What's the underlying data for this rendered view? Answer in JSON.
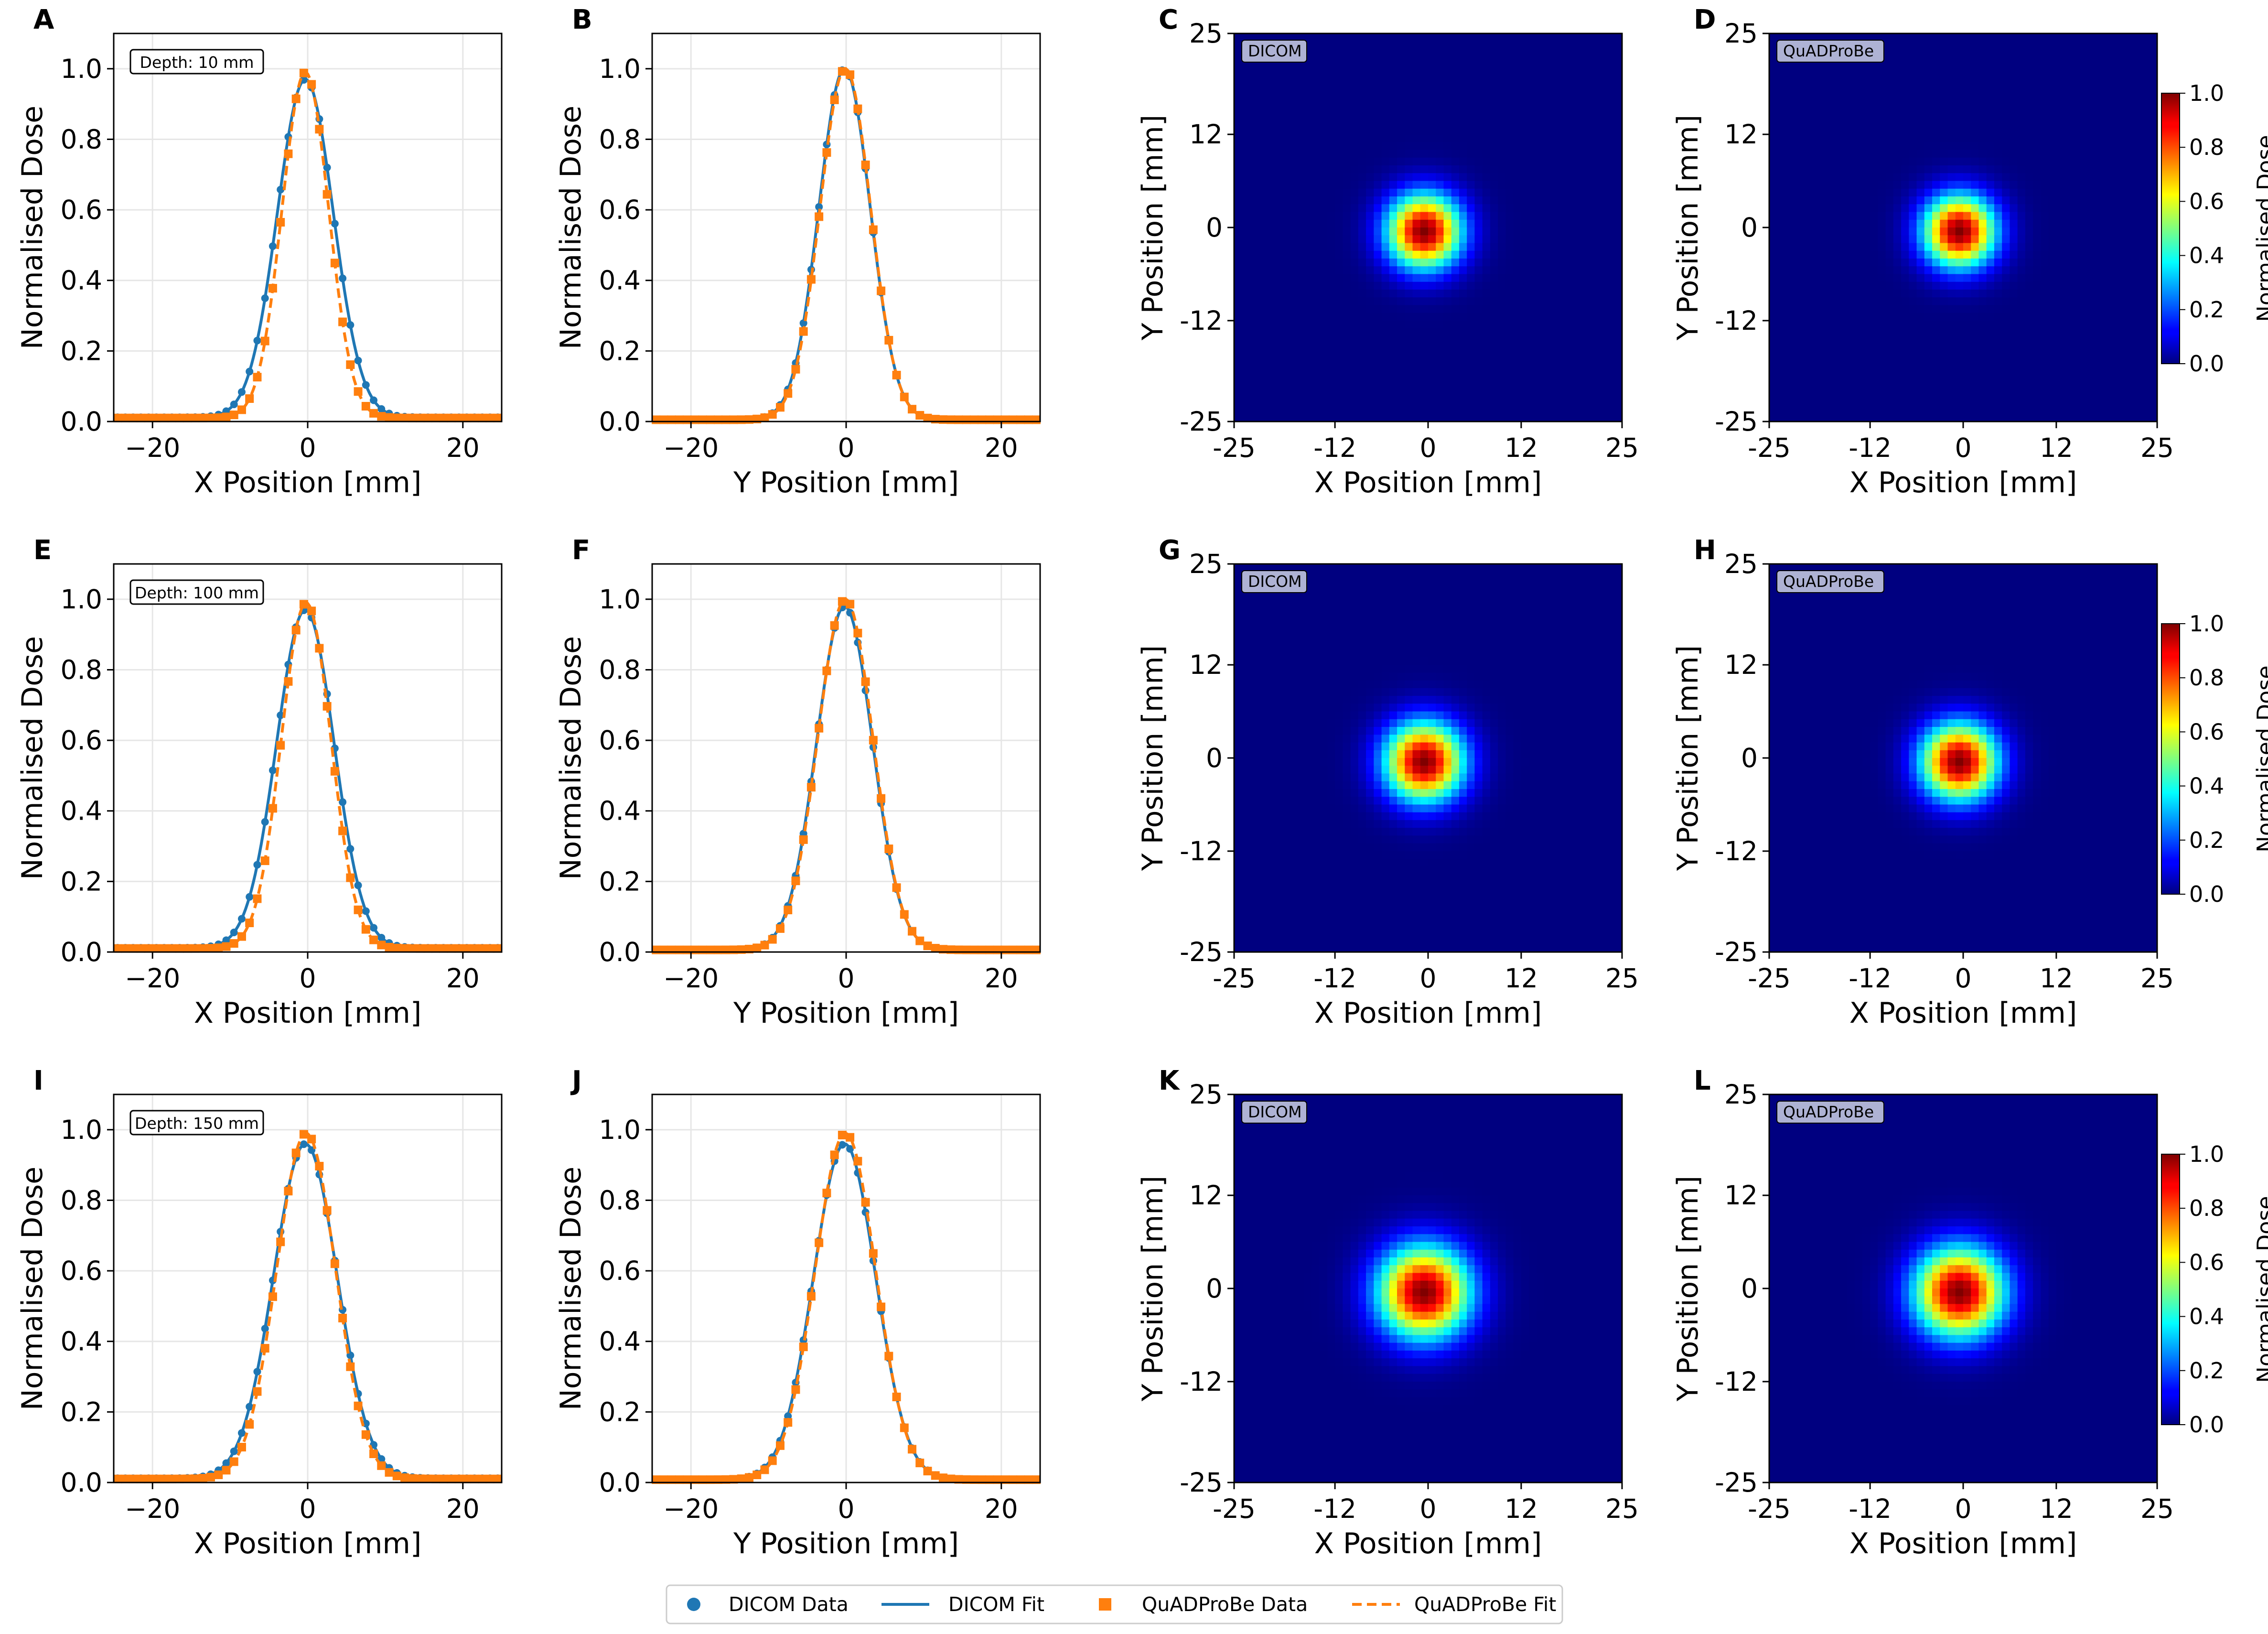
{
  "figure": {
    "x_axis_label": "X Position [mm]",
    "y_axis_label": "Y Position [mm]",
    "dose_axis_label": "Normalised Dose",
    "colorbar_label": "Normalised Dose",
    "colorbar_ticks": [
      "0.0",
      "0.2",
      "0.4",
      "0.6",
      "0.8",
      "1.0"
    ],
    "legend": [
      {
        "label": "DICOM Data",
        "style": "marker-circle",
        "color": "#1f77b4"
      },
      {
        "label": "DICOM Fit",
        "style": "solid-line",
        "color": "#1f77b4"
      },
      {
        "label": "QuADProBe Data",
        "style": "marker-square",
        "color": "#ff7f0e"
      },
      {
        "label": "QuADProBe Fit",
        "style": "dashed-line",
        "color": "#ff7f0e"
      }
    ],
    "colors": {
      "dicom": "#1f77b4",
      "quadprobe": "#ff7f0e",
      "grid": "#e6e6e6"
    }
  },
  "rows": [
    {
      "depth_label": "Depth: 10 mm"
    },
    {
      "depth_label": "Depth: 100 mm"
    },
    {
      "depth_label": "Depth: 150 mm"
    }
  ],
  "chart_data": [
    {
      "panel": "A",
      "type": "line",
      "profile": "x",
      "depth": "Depth: 10 mm",
      "xlabel": "X Position [mm]",
      "ylabel": "Normalised Dose",
      "xlim": [
        -25,
        25
      ],
      "ylim": [
        0,
        1.1
      ],
      "xticks": [
        -20,
        0,
        20
      ],
      "yticks": [
        0.0,
        0.2,
        0.4,
        0.6,
        0.8,
        1.0
      ],
      "series": [
        {
          "name": "DICOM Data",
          "kind": "points",
          "gauss": {
            "amp": 0.97,
            "mu": -0.3,
            "sigma": 3.6,
            "tail": 0.012
          }
        },
        {
          "name": "DICOM Fit",
          "kind": "line",
          "gauss": {
            "amp": 0.97,
            "mu": -0.3,
            "sigma": 3.6,
            "tail": 0.012
          }
        },
        {
          "name": "QuADProBe Data",
          "kind": "points",
          "gauss": {
            "amp": 0.99,
            "mu": -0.3,
            "sigma": 3.0,
            "tail": 0.01
          }
        },
        {
          "name": "QuADProBe Fit",
          "kind": "dashed",
          "gauss": {
            "amp": 0.99,
            "mu": -0.3,
            "sigma": 3.0,
            "tail": 0.01
          }
        }
      ]
    },
    {
      "panel": "B",
      "type": "line",
      "profile": "y",
      "xlabel": "Y Position [mm]",
      "ylabel": "Normalised Dose",
      "xlim": [
        -25,
        25
      ],
      "ylim": [
        0,
        1.1
      ],
      "xticks": [
        -20,
        0,
        20
      ],
      "yticks": [
        0.0,
        0.2,
        0.4,
        0.6,
        0.8,
        1.0
      ],
      "series": [
        {
          "name": "DICOM Data",
          "kind": "points",
          "gauss": {
            "amp": 1.0,
            "mu": -0.2,
            "sigma": 3.3,
            "tail": 0.005
          }
        },
        {
          "name": "DICOM Fit",
          "kind": "line",
          "gauss": {
            "amp": 1.0,
            "mu": -0.2,
            "sigma": 3.3,
            "tail": 0.005
          }
        },
        {
          "name": "QuADProBe Data",
          "kind": "points",
          "gauss": {
            "amp": 1.0,
            "mu": -0.1,
            "sigma": 3.25,
            "tail": 0.005
          }
        },
        {
          "name": "QuADProBe Fit",
          "kind": "dashed",
          "gauss": {
            "amp": 1.0,
            "mu": -0.1,
            "sigma": 3.25,
            "tail": 0.005
          }
        }
      ]
    },
    {
      "panel": "C",
      "type": "heatmap",
      "title_tag": "DICOM",
      "xlabel": "X Position [mm]",
      "ylabel": "Y Position [mm]",
      "xlim": [
        -25,
        25
      ],
      "ylim": [
        -25,
        25
      ],
      "xticks": [
        -25,
        -12,
        0,
        12,
        25
      ],
      "yticks": [
        25,
        12,
        0,
        -12,
        -25
      ],
      "grid_cells": 50,
      "center": [
        -0.5,
        -0.5
      ],
      "sigma": 3.3
    },
    {
      "panel": "D",
      "type": "heatmap",
      "title_tag": "QuADProBe",
      "xlabel": "X Position [mm]",
      "ylabel": "Y Position [mm]",
      "xlim": [
        -25,
        25
      ],
      "ylim": [
        -25,
        25
      ],
      "xticks": [
        -25,
        -12,
        0,
        12,
        25
      ],
      "yticks": [
        25,
        12,
        0,
        -12,
        -25
      ],
      "grid_cells": 50,
      "center": [
        -0.5,
        -0.5
      ],
      "sigma": 3.2,
      "colorbar": true
    },
    {
      "panel": "E",
      "type": "line",
      "profile": "x",
      "depth": "Depth: 100 mm",
      "xlabel": "X Position [mm]",
      "ylabel": "Normalised Dose",
      "xlim": [
        -25,
        25
      ],
      "ylim": [
        0,
        1.1
      ],
      "xticks": [
        -20,
        0,
        20
      ],
      "yticks": [
        0.0,
        0.2,
        0.4,
        0.6,
        0.8,
        1.0
      ],
      "series": [
        {
          "name": "DICOM Data",
          "kind": "points",
          "gauss": {
            "amp": 0.97,
            "mu": -0.3,
            "sigma": 3.7,
            "tail": 0.012
          }
        },
        {
          "name": "DICOM Fit",
          "kind": "line",
          "gauss": {
            "amp": 0.97,
            "mu": -0.3,
            "sigma": 3.7,
            "tail": 0.012
          }
        },
        {
          "name": "QuADProBe Data",
          "kind": "points",
          "gauss": {
            "amp": 0.99,
            "mu": -0.2,
            "sigma": 3.2,
            "tail": 0.01
          }
        },
        {
          "name": "QuADProBe Fit",
          "kind": "dashed",
          "gauss": {
            "amp": 0.99,
            "mu": -0.2,
            "sigma": 3.2,
            "tail": 0.01
          }
        }
      ]
    },
    {
      "panel": "F",
      "type": "line",
      "profile": "y",
      "xlabel": "Y Position [mm]",
      "ylabel": "Normalised Dose",
      "xlim": [
        -25,
        25
      ],
      "ylim": [
        0,
        1.1
      ],
      "xticks": [
        -20,
        0,
        20
      ],
      "yticks": [
        0.0,
        0.2,
        0.4,
        0.6,
        0.8,
        1.0
      ],
      "series": [
        {
          "name": "DICOM Data",
          "kind": "points",
          "gauss": {
            "amp": 0.98,
            "mu": -0.2,
            "sigma": 3.6,
            "tail": 0.006
          }
        },
        {
          "name": "DICOM Fit",
          "kind": "line",
          "gauss": {
            "amp": 0.98,
            "mu": -0.2,
            "sigma": 3.6,
            "tail": 0.006
          }
        },
        {
          "name": "QuADProBe Data",
          "kind": "points",
          "gauss": {
            "amp": 1.0,
            "mu": -0.1,
            "sigma": 3.55,
            "tail": 0.006
          }
        },
        {
          "name": "QuADProBe Fit",
          "kind": "dashed",
          "gauss": {
            "amp": 1.0,
            "mu": -0.1,
            "sigma": 3.55,
            "tail": 0.006
          }
        }
      ]
    },
    {
      "panel": "G",
      "type": "heatmap",
      "title_tag": "DICOM",
      "xlabel": "X Position [mm]",
      "ylabel": "Y Position [mm]",
      "xlim": [
        -25,
        25
      ],
      "ylim": [
        -25,
        25
      ],
      "xticks": [
        -25,
        -12,
        0,
        12,
        25
      ],
      "yticks": [
        25,
        12,
        0,
        -12,
        -25
      ],
      "grid_cells": 50,
      "center": [
        -0.5,
        -0.5
      ],
      "sigma": 3.5
    },
    {
      "panel": "H",
      "type": "heatmap",
      "title_tag": "QuADProBe",
      "xlabel": "X Position [mm]",
      "ylabel": "Y Position [mm]",
      "xlim": [
        -25,
        25
      ],
      "ylim": [
        -25,
        25
      ],
      "xticks": [
        -25,
        -12,
        0,
        12,
        25
      ],
      "yticks": [
        25,
        12,
        0,
        -12,
        -25
      ],
      "grid_cells": 50,
      "center": [
        -0.5,
        -0.5
      ],
      "sigma": 3.4,
      "colorbar": true
    },
    {
      "panel": "I",
      "type": "line",
      "profile": "x",
      "depth": "Depth: 150 mm",
      "xlabel": "X Position [mm]",
      "ylabel": "Normalised Dose",
      "xlim": [
        -25,
        25
      ],
      "ylim": [
        0,
        1.1
      ],
      "xticks": [
        -20,
        0,
        20
      ],
      "yticks": [
        0.0,
        0.2,
        0.4,
        0.6,
        0.8,
        1.0
      ],
      "series": [
        {
          "name": "DICOM Data",
          "kind": "points",
          "gauss": {
            "amp": 0.96,
            "mu": -0.3,
            "sigma": 4.1,
            "tail": 0.012
          }
        },
        {
          "name": "DICOM Fit",
          "kind": "line",
          "gauss": {
            "amp": 0.96,
            "mu": -0.3,
            "sigma": 4.1,
            "tail": 0.012
          }
        },
        {
          "name": "QuADProBe Data",
          "kind": "points",
          "gauss": {
            "amp": 0.99,
            "mu": -0.2,
            "sigma": 3.8,
            "tail": 0.01
          }
        },
        {
          "name": "QuADProBe Fit",
          "kind": "dashed",
          "gauss": {
            "amp": 0.99,
            "mu": -0.2,
            "sigma": 3.8,
            "tail": 0.01
          }
        }
      ]
    },
    {
      "panel": "J",
      "type": "line",
      "profile": "y",
      "xlabel": "Y Position [mm]",
      "ylabel": "Normalised Dose",
      "xlim": [
        -25,
        25
      ],
      "ylim": [
        0,
        1.1
      ],
      "xticks": [
        -20,
        0,
        20
      ],
      "yticks": [
        0.0,
        0.2,
        0.4,
        0.6,
        0.8,
        1.0
      ],
      "series": [
        {
          "name": "DICOM Data",
          "kind": "points",
          "gauss": {
            "amp": 0.96,
            "mu": -0.2,
            "sigma": 4.0,
            "tail": 0.008
          }
        },
        {
          "name": "DICOM Fit",
          "kind": "line",
          "gauss": {
            "amp": 0.96,
            "mu": -0.2,
            "sigma": 4.0,
            "tail": 0.008
          }
        },
        {
          "name": "QuADProBe Data",
          "kind": "points",
          "gauss": {
            "amp": 0.99,
            "mu": -0.1,
            "sigma": 3.9,
            "tail": 0.008
          }
        },
        {
          "name": "QuADProBe Fit",
          "kind": "dashed",
          "gauss": {
            "amp": 0.99,
            "mu": -0.1,
            "sigma": 3.9,
            "tail": 0.008
          }
        }
      ]
    },
    {
      "panel": "K",
      "type": "heatmap",
      "title_tag": "DICOM",
      "xlabel": "X Position [mm]",
      "ylabel": "Y Position [mm]",
      "xlim": [
        -25,
        25
      ],
      "ylim": [
        -25,
        25
      ],
      "xticks": [
        -25,
        -12,
        0,
        12,
        25
      ],
      "yticks": [
        25,
        12,
        0,
        -12,
        -25
      ],
      "grid_cells": 50,
      "center": [
        -0.5,
        -0.5
      ],
      "sigma": 4.1
    },
    {
      "panel": "L",
      "type": "heatmap",
      "title_tag": "QuADProBe",
      "xlabel": "X Position [mm]",
      "ylabel": "Y Position [mm]",
      "xlim": [
        -25,
        25
      ],
      "ylim": [
        -25,
        25
      ],
      "xticks": [
        -25,
        -12,
        0,
        12,
        25
      ],
      "yticks": [
        25,
        12,
        0,
        -12,
        -25
      ],
      "grid_cells": 50,
      "center": [
        -0.5,
        -0.5
      ],
      "sigma": 4.0,
      "colorbar": true
    }
  ]
}
